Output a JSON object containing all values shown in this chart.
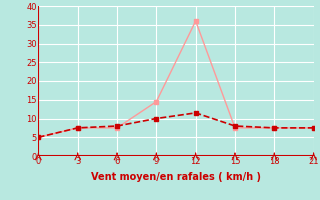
{
  "xlabel": "Vent moyen/en rafales ( km/h )",
  "x_values": [
    0,
    3,
    6,
    9,
    12,
    15,
    18,
    21
  ],
  "y_rafales": [
    5,
    7.5,
    7.5,
    14.5,
    36,
    7.5,
    7.5,
    7.5
  ],
  "y_moyen": [
    5,
    7.5,
    8.0,
    10.0,
    11.5,
    8.0,
    7.5,
    7.5
  ],
  "color_rafales": "#ff9999",
  "color_moyen": "#cc0000",
  "bg_color": "#b8e8e0",
  "grid_color": "#d0eeea",
  "axis_line_color": "#cc0000",
  "text_color": "#cc0000",
  "xlim": [
    0,
    21
  ],
  "ylim": [
    0,
    40
  ],
  "xticks": [
    0,
    3,
    6,
    9,
    12,
    15,
    18,
    21
  ],
  "yticks": [
    0,
    5,
    10,
    15,
    20,
    25,
    30,
    35,
    40
  ]
}
